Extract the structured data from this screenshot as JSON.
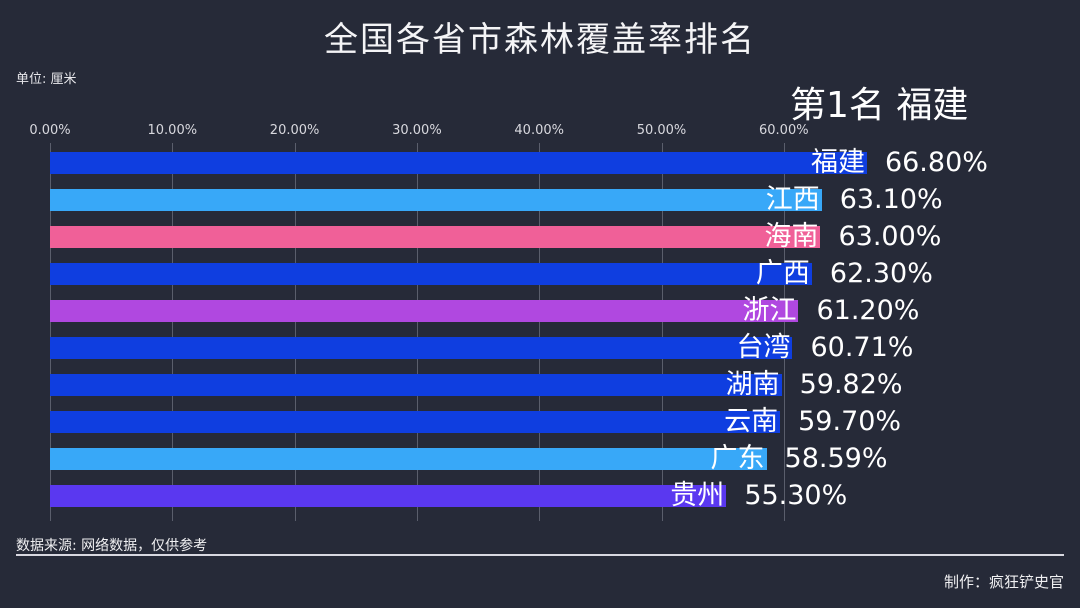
{
  "header": {
    "title": "全国各省市森林覆盖率排名",
    "unit": "单位: 厘米",
    "rank_label": "第1名 福建"
  },
  "footer": {
    "source": "数据来源: 网络数据，仅供参考",
    "credit": "制作：疯狂铲史官"
  },
  "axis": {
    "ticks": [
      "0.00%",
      "10.00%",
      "20.00%",
      "30.00%",
      "40.00%",
      "50.00%",
      "60.00%"
    ]
  },
  "chart_data": {
    "type": "bar",
    "orientation": "horizontal",
    "title": "全国各省市森林覆盖率排名",
    "subtitle": "第1名 福建",
    "xlabel": "",
    "ylabel": "",
    "unit_note": "单位: 厘米",
    "xlim": [
      0,
      67
    ],
    "x_ticks": [
      "0.00%",
      "10.00%",
      "20.00%",
      "30.00%",
      "40.00%",
      "50.00%",
      "60.00%"
    ],
    "grid": true,
    "categories": [
      "福建",
      "江西",
      "海南",
      "广西",
      "浙江",
      "台湾",
      "湖南",
      "云南",
      "广东",
      "贵州"
    ],
    "values": [
      66.8,
      63.1,
      63.0,
      62.3,
      61.2,
      60.71,
      59.82,
      59.7,
      58.59,
      55.3
    ],
    "value_labels": [
      "66.80%",
      "63.10%",
      "63.00%",
      "62.30%",
      "61.20%",
      "60.71%",
      "59.82%",
      "59.70%",
      "58.59%",
      "55.30%"
    ],
    "colors": [
      "#0f3ee0",
      "#38a8f8",
      "#f06098",
      "#0f3ee0",
      "#b048e0",
      "#0f3ee0",
      "#0f3ee0",
      "#0f3ee0",
      "#38a8f8",
      "#5a38f0"
    ],
    "source": "数据来源: 网络数据，仅供参考",
    "credit": "制作：疯狂铲史官"
  }
}
